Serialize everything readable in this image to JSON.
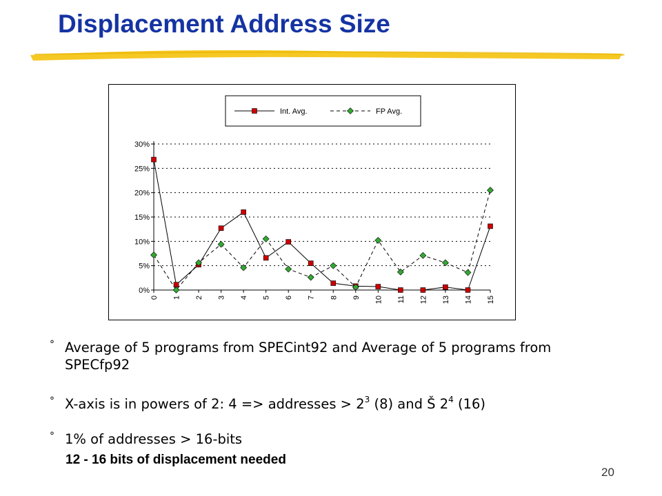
{
  "slide": {
    "title": "Displacement Address Size",
    "page_number": "20",
    "title_color": "#1533a3",
    "underline_color": "#f5c518"
  },
  "bullets": [
    {
      "text": "Average of 5 programs from SPECint92 and Average of 5 programs from SPECfp92"
    },
    {
      "text_parts": [
        "X-axis is in powers of 2: 4 => addresses > 2",
        "3",
        " (8) and Š 2",
        "4",
        " (16)"
      ]
    },
    {
      "text": "1% of addresses > 16-bits"
    }
  ],
  "subnote": "12 - 16 bits of displacement needed",
  "chart_data": {
    "type": "line",
    "categories": [
      "0",
      "1",
      "2",
      "3",
      "4",
      "5",
      "6",
      "7",
      "8",
      "9",
      "10",
      "11",
      "12",
      "13",
      "14",
      "15"
    ],
    "ylim": [
      0,
      30
    ],
    "y_ticks": [
      0,
      5,
      10,
      15,
      20,
      25,
      30
    ],
    "y_tick_labels": [
      "0%",
      "5%",
      "10%",
      "15%",
      "20%",
      "25%",
      "30%"
    ],
    "grid": true,
    "legend_position": "top",
    "series": [
      {
        "name": "Int. Avg.",
        "color": "#cc0000",
        "marker": "square",
        "line": "solid",
        "values": [
          26.8,
          1.1,
          5.2,
          12.7,
          16.0,
          6.6,
          9.9,
          5.5,
          1.4,
          0.8,
          0.7,
          0.0,
          0.0,
          0.6,
          0.0,
          13.1
        ]
      },
      {
        "name": "FP Avg.",
        "color": "#33aa33",
        "marker": "diamond",
        "line": "dashed",
        "values": [
          7.2,
          0.0,
          5.6,
          9.4,
          4.6,
          10.5,
          4.3,
          2.6,
          5.0,
          0.6,
          10.2,
          3.7,
          7.1,
          5.6,
          3.6,
          20.5
        ]
      }
    ]
  }
}
